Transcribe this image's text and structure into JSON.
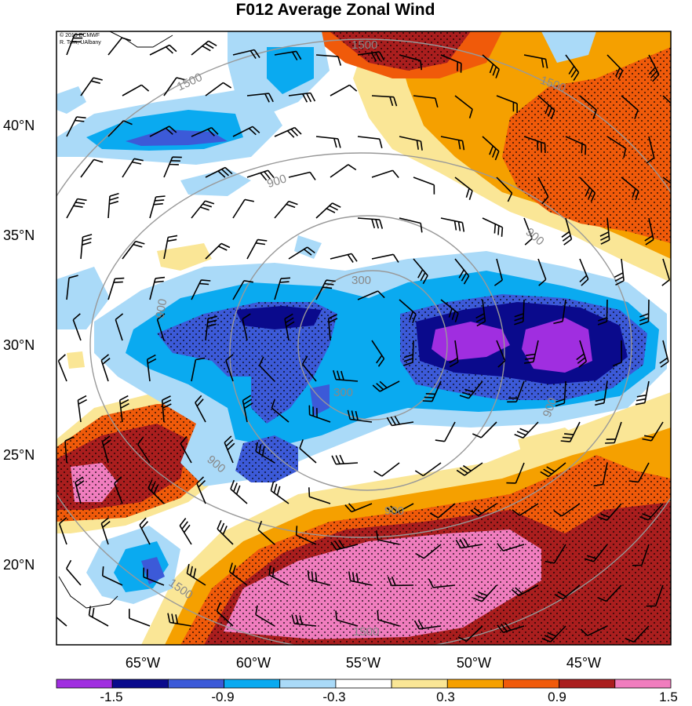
{
  "title": "F012 Average Zonal Wind",
  "credits": [
    "© 2016 ECMWF",
    "R. Torn, UAlbany"
  ],
  "latitude_labels": [
    "40°N",
    "35°N",
    "30°N",
    "25°N",
    "20°N"
  ],
  "longitude_labels": [
    "65°W",
    "60°W",
    "55°W",
    "50°W",
    "45°W"
  ],
  "colorbar": {
    "tick_labels": [
      "-1.5",
      "-0.9",
      "-0.3",
      "0.3",
      "0.9",
      "1.5"
    ],
    "colors": [
      "#a02ee0",
      "#0a0a8c",
      "#3c5ad8",
      "#0aaaf0",
      "#aadaf8",
      "#ffffff",
      "#fae696",
      "#f5a000",
      "#f05a0a",
      "#aa1e1e",
      "#f07dbe"
    ]
  },
  "contour_labels": [
    "1500",
    "1500",
    "1500",
    "900",
    "900",
    "900",
    "900",
    "900",
    "900",
    "900",
    "300",
    "300",
    "1500",
    "1500"
  ],
  "colors": {
    "contour": "#999999",
    "map_border": "#000000"
  }
}
